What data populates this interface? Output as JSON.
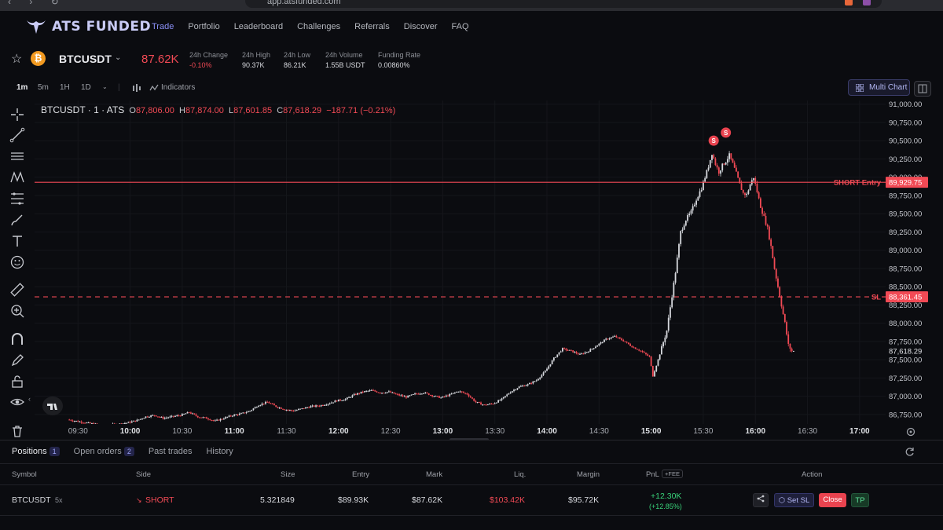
{
  "browser": {
    "url": "app.atsfunded.com"
  },
  "brand": {
    "name": "ATS FUNDED"
  },
  "nav": {
    "items": [
      "Trade",
      "Portfolio",
      "Leaderboard",
      "Challenges",
      "Referrals",
      "Discover",
      "FAQ"
    ],
    "active": "Trade"
  },
  "ticker": {
    "symbol": "BTCUSDT",
    "price": "87.62K",
    "stats": [
      {
        "label": "24h Change",
        "value": "-0.10%"
      },
      {
        "label": "24h High",
        "value": "90.37K"
      },
      {
        "label": "24h Low",
        "value": "86.21K"
      },
      {
        "label": "24h Volume",
        "value": "1.55B USDT"
      },
      {
        "label": "Funding Rate",
        "value": "0.00860%"
      }
    ]
  },
  "toolbar": {
    "timeframes": [
      "1m",
      "5m",
      "1H",
      "1D"
    ],
    "active_timeframe": "1m",
    "indicators_label": "Indicators",
    "multichart_label": "Multi Chart"
  },
  "legend": {
    "title": "BTCUSDT · 1 · ATS",
    "o_label": "O",
    "o": "87,806.00",
    "h_label": "H",
    "h": "87,874.00",
    "l_label": "L",
    "l": "87,601.85",
    "c_label": "C",
    "c": "87,618.29",
    "change": "−187.71 (−0.21%)"
  },
  "chart_data": {
    "type": "candlestick",
    "title": "BTCUSDT · 1 · ATS",
    "y_ticks": [
      "91,000.00",
      "90,750.00",
      "90,500.00",
      "90,250.00",
      "90,000.00",
      "89,750.00",
      "89,500.00",
      "89,250.00",
      "89,000.00",
      "88,750.00",
      "88,500.00",
      "88,250.00",
      "88,000.00",
      "87,750.00",
      "87,500.00",
      "87,250.00",
      "87,000.00",
      "86,750.00"
    ],
    "y_tick_values": [
      91000,
      90750,
      90500,
      90250,
      90000,
      89750,
      89500,
      89250,
      89000,
      88750,
      88500,
      88250,
      88000,
      87750,
      87500,
      87250,
      87000,
      86750
    ],
    "ylim": [
      86620,
      91050
    ],
    "x_ticks": [
      "09:30",
      "10:00",
      "10:30",
      "11:00",
      "11:30",
      "12:00",
      "12:30",
      "13:00",
      "13:30",
      "14:00",
      "14:30",
      "15:00",
      "15:30",
      "16:00",
      "16:30",
      "17:00"
    ],
    "bold_x_ticks": [
      "10:00",
      "11:00",
      "12:00",
      "13:00",
      "14:00",
      "15:00",
      "16:00",
      "17:00"
    ],
    "xlim_minutes": [
      545,
      1035
    ],
    "x_tick_minutes": [
      570,
      600,
      630,
      660,
      690,
      720,
      750,
      780,
      810,
      840,
      870,
      900,
      930,
      960,
      990,
      1020
    ],
    "price_path": [
      [
        565,
        86680
      ],
      [
        575,
        86640
      ],
      [
        585,
        86600
      ],
      [
        595,
        86620
      ],
      [
        600,
        86640
      ],
      [
        605,
        86670
      ],
      [
        610,
        86720
      ],
      [
        615,
        86740
      ],
      [
        620,
        86700
      ],
      [
        625,
        86720
      ],
      [
        630,
        86740
      ],
      [
        635,
        86780
      ],
      [
        640,
        86720
      ],
      [
        645,
        86700
      ],
      [
        650,
        86660
      ],
      [
        655,
        86700
      ],
      [
        660,
        86740
      ],
      [
        665,
        86760
      ],
      [
        670,
        86800
      ],
      [
        675,
        86880
      ],
      [
        680,
        86920
      ],
      [
        685,
        86860
      ],
      [
        690,
        86820
      ],
      [
        695,
        86800
      ],
      [
        700,
        86830
      ],
      [
        705,
        86860
      ],
      [
        710,
        86870
      ],
      [
        715,
        86900
      ],
      [
        720,
        86940
      ],
      [
        725,
        86960
      ],
      [
        730,
        87020
      ],
      [
        735,
        87060
      ],
      [
        740,
        87080
      ],
      [
        745,
        87050
      ],
      [
        750,
        87060
      ],
      [
        755,
        87020
      ],
      [
        760,
        86990
      ],
      [
        765,
        87030
      ],
      [
        770,
        87050
      ],
      [
        775,
        87010
      ],
      [
        780,
        86980
      ],
      [
        785,
        87020
      ],
      [
        790,
        87070
      ],
      [
        795,
        87030
      ],
      [
        800,
        86920
      ],
      [
        805,
        86880
      ],
      [
        810,
        86900
      ],
      [
        815,
        86960
      ],
      [
        820,
        87060
      ],
      [
        825,
        87130
      ],
      [
        830,
        87160
      ],
      [
        835,
        87220
      ],
      [
        840,
        87340
      ],
      [
        845,
        87520
      ],
      [
        850,
        87650
      ],
      [
        855,
        87620
      ],
      [
        860,
        87570
      ],
      [
        865,
        87620
      ],
      [
        870,
        87700
      ],
      [
        875,
        87780
      ],
      [
        880,
        87820
      ],
      [
        885,
        87760
      ],
      [
        890,
        87680
      ],
      [
        895,
        87620
      ],
      [
        900,
        87540
      ],
      [
        902,
        87280
      ],
      [
        905,
        87500
      ],
      [
        910,
        87900
      ],
      [
        912,
        88220
      ],
      [
        915,
        88700
      ],
      [
        918,
        89250
      ],
      [
        921,
        89420
      ],
      [
        924,
        89520
      ],
      [
        927,
        89700
      ],
      [
        930,
        89850
      ],
      [
        932,
        90000
      ],
      [
        934,
        90150
      ],
      [
        936,
        90330
      ],
      [
        938,
        90180
      ],
      [
        940,
        90070
      ],
      [
        942,
        90160
      ],
      [
        944,
        90220
      ],
      [
        946,
        90300
      ],
      [
        948,
        90180
      ],
      [
        950,
        90050
      ],
      [
        952,
        89900
      ],
      [
        954,
        89780
      ],
      [
        956,
        89760
      ],
      [
        958,
        89900
      ],
      [
        960,
        90000
      ],
      [
        962,
        89800
      ],
      [
        964,
        89600
      ],
      [
        966,
        89450
      ],
      [
        968,
        89300
      ],
      [
        970,
        89050
      ],
      [
        972,
        88750
      ],
      [
        974,
        88500
      ],
      [
        976,
        88250
      ],
      [
        978,
        88000
      ],
      [
        980,
        87700
      ],
      [
        982,
        87618
      ]
    ],
    "price_lines": [
      {
        "label": "SHORT Entry",
        "price_label": "89,929.75",
        "value": 89929.75,
        "style": "solid",
        "color": "#f24a55"
      },
      {
        "label": "SL",
        "price_label": "88,361.45",
        "value": 88361.45,
        "style": "dashed",
        "color": "#f24a55"
      }
    ],
    "last_price": {
      "label": "87,618.29",
      "value": 87618.29
    },
    "markers": [
      {
        "text": "S",
        "x_min": 936,
        "value": 90500
      },
      {
        "text": "S",
        "x_min": 943,
        "value": 90610
      }
    ]
  },
  "positions": {
    "tabs": [
      {
        "label": "Positions",
        "count": "1"
      },
      {
        "label": "Open orders",
        "count": "2"
      },
      {
        "label": "Past trades",
        "count": null
      },
      {
        "label": "History",
        "count": null
      }
    ],
    "headers": {
      "symbol": "Symbol",
      "side": "Side",
      "size": "Size",
      "entry": "Entry",
      "mark": "Mark",
      "liq": "Liq.",
      "margin": "Margin",
      "pnl": "PnL",
      "fee": "+FEE",
      "action": "Action"
    },
    "row": {
      "symbol": "BTCUSDT",
      "leverage": "5x",
      "side": "SHORT",
      "size": "5.321849",
      "entry": "$89.93K",
      "mark": "$87.62K",
      "liq": "$103.42K",
      "margin": "$95.72K",
      "pnl": "+12.30K",
      "pnl_pct": "(+12.85%)",
      "actions": {
        "set_sl": "Set SL",
        "close": "Close",
        "tp": "TP"
      }
    }
  },
  "colors": {
    "accent": "#8a8ff5",
    "down": "#f24a55",
    "up": "#d7d9de",
    "profit": "#39d37a"
  }
}
